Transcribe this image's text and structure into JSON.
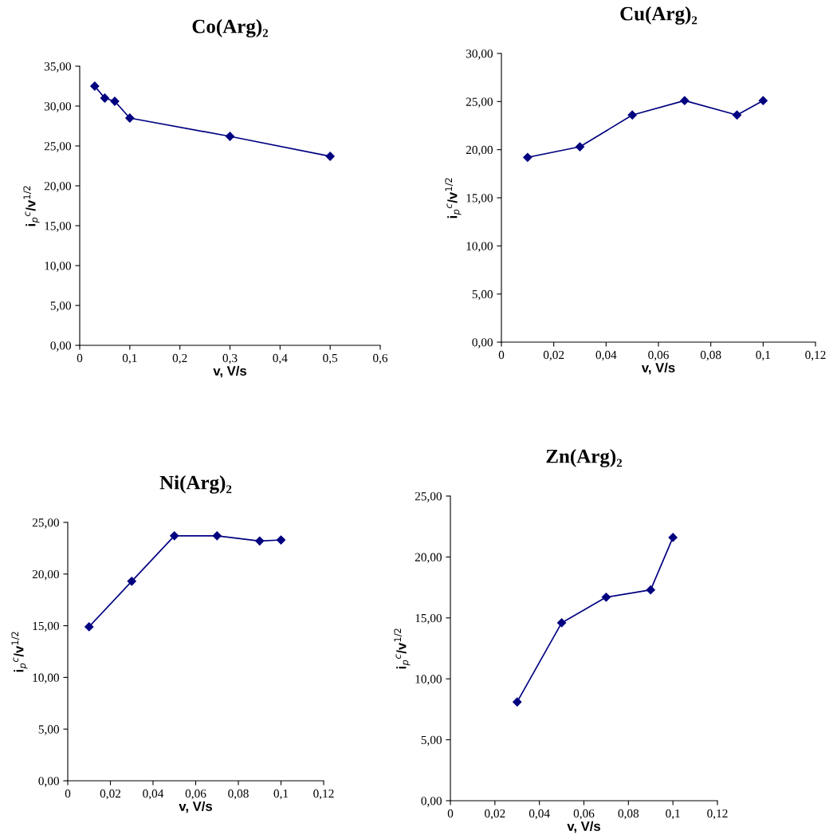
{
  "chart_data": [
    {
      "type": "line",
      "title": "Co(Arg)₂",
      "xlabel": "v, V/s",
      "ylabel": "i$_{p}$$^{c}$/v$^{1/2}$",
      "marker": "diamond",
      "line_style": "solid",
      "grid": false,
      "legend": false,
      "series": [
        {
          "color": "#000080",
          "x": [
            0.03,
            0.05,
            0.07,
            0.1,
            0.3,
            0.5
          ],
          "values": [
            32.5,
            31.0,
            30.6,
            28.5,
            26.2,
            23.7
          ]
        }
      ],
      "xlim": [
        0,
        0.6
      ],
      "ylim": [
        0,
        35
      ],
      "xticks": [
        0,
        {
          "value": 0.1,
          "label": "0,1"
        },
        {
          "value": 0.2,
          "label": "0,2"
        },
        {
          "value": 0.3,
          "label": "0,3"
        },
        {
          "value": 0.4,
          "label": "0,4"
        },
        {
          "value": 0.5,
          "label": "0,5"
        },
        {
          "value": 0.6,
          "label": "0,6"
        }
      ],
      "yticks": [
        {
          "value": 0,
          "label": "0,00"
        },
        {
          "value": 5,
          "label": "5,00"
        },
        {
          "value": 10,
          "label": "10,00"
        },
        {
          "value": 15,
          "label": "15,00"
        },
        {
          "value": 20,
          "label": "20,00"
        },
        {
          "value": 25,
          "label": "25,00"
        },
        {
          "value": 30,
          "label": "30,00"
        },
        {
          "value": 35,
          "label": "35,00"
        }
      ]
    },
    {
      "type": "line",
      "title": "Cu(Arg)₂",
      "xlabel": "v, V/s",
      "ylabel": "i$_{p}$$^{c}$/v$^{1/2}$",
      "marker": "diamond",
      "line_style": "solid",
      "grid": false,
      "legend": false,
      "series": [
        {
          "color": "#000080",
          "x": [
            0.01,
            0.03,
            0.05,
            0.07,
            0.09,
            0.1
          ],
          "values": [
            19.2,
            20.3,
            23.6,
            25.1,
            23.6,
            25.1
          ]
        }
      ],
      "xlim": [
        0,
        0.12
      ],
      "ylim": [
        0,
        30
      ],
      "xticks": [
        0,
        {
          "value": 0.02,
          "label": "0,02"
        },
        {
          "value": 0.04,
          "label": "0,04"
        },
        {
          "value": 0.06,
          "label": "0,06"
        },
        {
          "value": 0.08,
          "label": "0,08"
        },
        {
          "value": 0.1,
          "label": "0,1"
        },
        {
          "value": 0.12,
          "label": "0,12"
        }
      ],
      "yticks": [
        {
          "value": 0,
          "label": "0,00"
        },
        {
          "value": 5,
          "label": "5,00"
        },
        {
          "value": 10,
          "label": "10,00"
        },
        {
          "value": 15,
          "label": "15,00"
        },
        {
          "value": 20,
          "label": "20,00"
        },
        {
          "value": 25,
          "label": "25,00"
        },
        {
          "value": 30,
          "label": "30,00"
        }
      ]
    },
    {
      "type": "line",
      "title": "Ni(Arg)₂",
      "xlabel": "v, V/s",
      "ylabel": "i$_{p}$$^{c}$/v$^{1/2}$",
      "marker": "diamond",
      "line_style": "solid",
      "grid": false,
      "legend": false,
      "series": [
        {
          "color": "#000080",
          "x": [
            0.01,
            0.03,
            0.05,
            0.07,
            0.09,
            0.1
          ],
          "values": [
            14.9,
            19.3,
            23.7,
            23.7,
            23.2,
            23.3
          ]
        }
      ],
      "xlim": [
        0,
        0.12
      ],
      "ylim": [
        0,
        25
      ],
      "xticks": [
        0,
        {
          "value": 0.02,
          "label": "0,02"
        },
        {
          "value": 0.04,
          "label": "0,04"
        },
        {
          "value": 0.06,
          "label": "0,06"
        },
        {
          "value": 0.08,
          "label": "0,08"
        },
        {
          "value": 0.1,
          "label": "0,1"
        },
        {
          "value": 0.12,
          "label": "0,12"
        }
      ],
      "yticks": [
        {
          "value": 0,
          "label": "0,00"
        },
        {
          "value": 5,
          "label": "5,00"
        },
        {
          "value": 10,
          "label": "10,00"
        },
        {
          "value": 15,
          "label": "15,00"
        },
        {
          "value": 20,
          "label": "20,00"
        },
        {
          "value": 25,
          "label": "25,00"
        }
      ]
    },
    {
      "type": "line",
      "title": "Zn(Arg)₂",
      "xlabel": "v, V/s",
      "ylabel": "i$_{p}$$^{c}$/v$^{1/2}$",
      "marker": "diamond",
      "line_style": "solid",
      "grid": false,
      "legend": false,
      "series": [
        {
          "color": "#000080",
          "x": [
            0.03,
            0.05,
            0.07,
            0.09,
            0.1
          ],
          "values": [
            8.1,
            14.6,
            16.7,
            17.3,
            21.6
          ]
        }
      ],
      "xlim": [
        0,
        0.12
      ],
      "ylim": [
        0,
        25
      ],
      "xticks": [
        0,
        {
          "value": 0.02,
          "label": "0,02"
        },
        {
          "value": 0.04,
          "label": "0,04"
        },
        {
          "value": 0.06,
          "label": "0,06"
        },
        {
          "value": 0.08,
          "label": "0,08"
        },
        {
          "value": 0.1,
          "label": "0,1"
        },
        {
          "value": 0.12,
          "label": "0,12"
        }
      ],
      "yticks": [
        {
          "value": 0,
          "label": "0,00"
        },
        {
          "value": 5,
          "label": "5,00"
        },
        {
          "value": 10,
          "label": "10,00"
        },
        {
          "value": 15,
          "label": "15,00"
        },
        {
          "value": 20,
          "label": "20,00"
        },
        {
          "value": 25,
          "label": "25,00"
        }
      ]
    }
  ]
}
